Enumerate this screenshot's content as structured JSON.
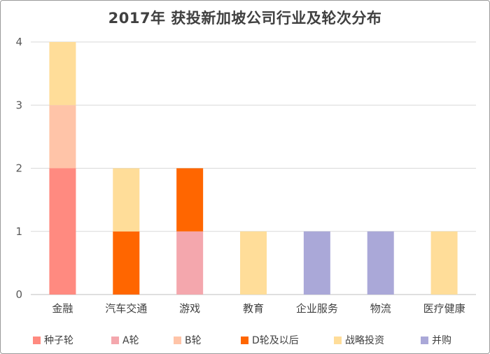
{
  "chart_data": {
    "type": "bar",
    "stacked": true,
    "title": "2017年 获投新加坡公司行业及轮次分布",
    "xlabel": "",
    "ylabel": "",
    "ylim": [
      0,
      4
    ],
    "yticks": [
      "0",
      "1",
      "2",
      "3",
      "4"
    ],
    "grid": true,
    "legend_position": "bottom",
    "categories": [
      "金融",
      "汽车交通",
      "游戏",
      "教育",
      "企业服务",
      "物流",
      "医疗健康"
    ],
    "series": [
      {
        "name": "种子轮",
        "color": "#ff8a80",
        "values": [
          2,
          0,
          0,
          0,
          0,
          0,
          0
        ]
      },
      {
        "name": "A轮",
        "color": "#f4a7ad",
        "values": [
          0,
          0,
          1,
          0,
          0,
          0,
          0
        ]
      },
      {
        "name": "B轮",
        "color": "#ffc4a8",
        "values": [
          1,
          0,
          0,
          0,
          0,
          0,
          0
        ]
      },
      {
        "name": "D轮及以后",
        "color": "#ff6600",
        "values": [
          0,
          1,
          1,
          0,
          0,
          0,
          0
        ]
      },
      {
        "name": "战略投资",
        "color": "#ffdd99",
        "values": [
          1,
          1,
          0,
          1,
          0,
          0,
          1
        ]
      },
      {
        "name": "并购",
        "color": "#aaa8d8",
        "values": [
          0,
          0,
          0,
          0,
          1,
          1,
          0
        ]
      }
    ]
  }
}
